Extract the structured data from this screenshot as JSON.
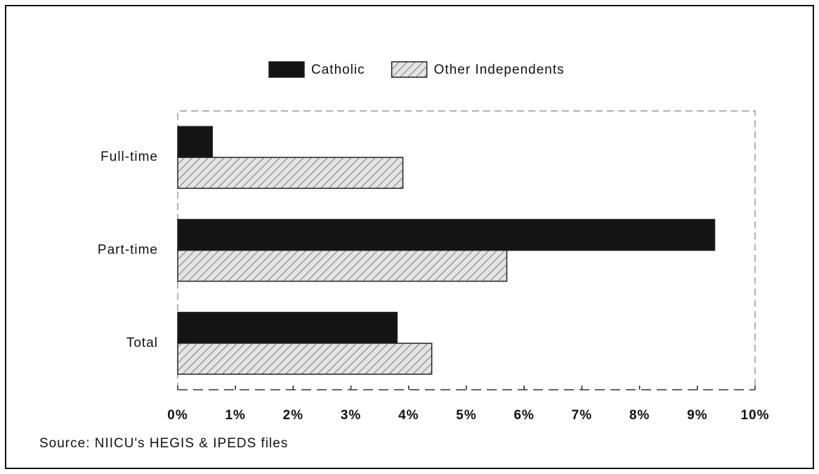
{
  "chart_data": {
    "type": "barh",
    "categories": [
      "Full-time",
      "Part-time",
      "Total"
    ],
    "series": [
      {
        "name": "Catholic",
        "color": "#141414",
        "values": [
          0.6,
          9.3,
          3.8
        ]
      },
      {
        "name": "Other Independents",
        "color": "#d8d8d8",
        "values": [
          3.9,
          5.7,
          4.4
        ]
      }
    ],
    "xlim": [
      0,
      10
    ],
    "xticks": [
      {
        "value": 0,
        "label": "0%"
      },
      {
        "value": 1,
        "label": "1%"
      },
      {
        "value": 2,
        "label": "2%"
      },
      {
        "value": 3,
        "label": "3%"
      },
      {
        "value": 4,
        "label": "4%"
      },
      {
        "value": 5,
        "label": "5%"
      },
      {
        "value": 6,
        "label": "6%"
      },
      {
        "value": 7,
        "label": "7%"
      },
      {
        "value": 8,
        "label": "8%"
      },
      {
        "value": 9,
        "label": "9%"
      },
      {
        "value": 10,
        "label": "10%"
      }
    ],
    "legend": "top",
    "note": "Source: NIICU's HEGIS & IPEDS files"
  }
}
